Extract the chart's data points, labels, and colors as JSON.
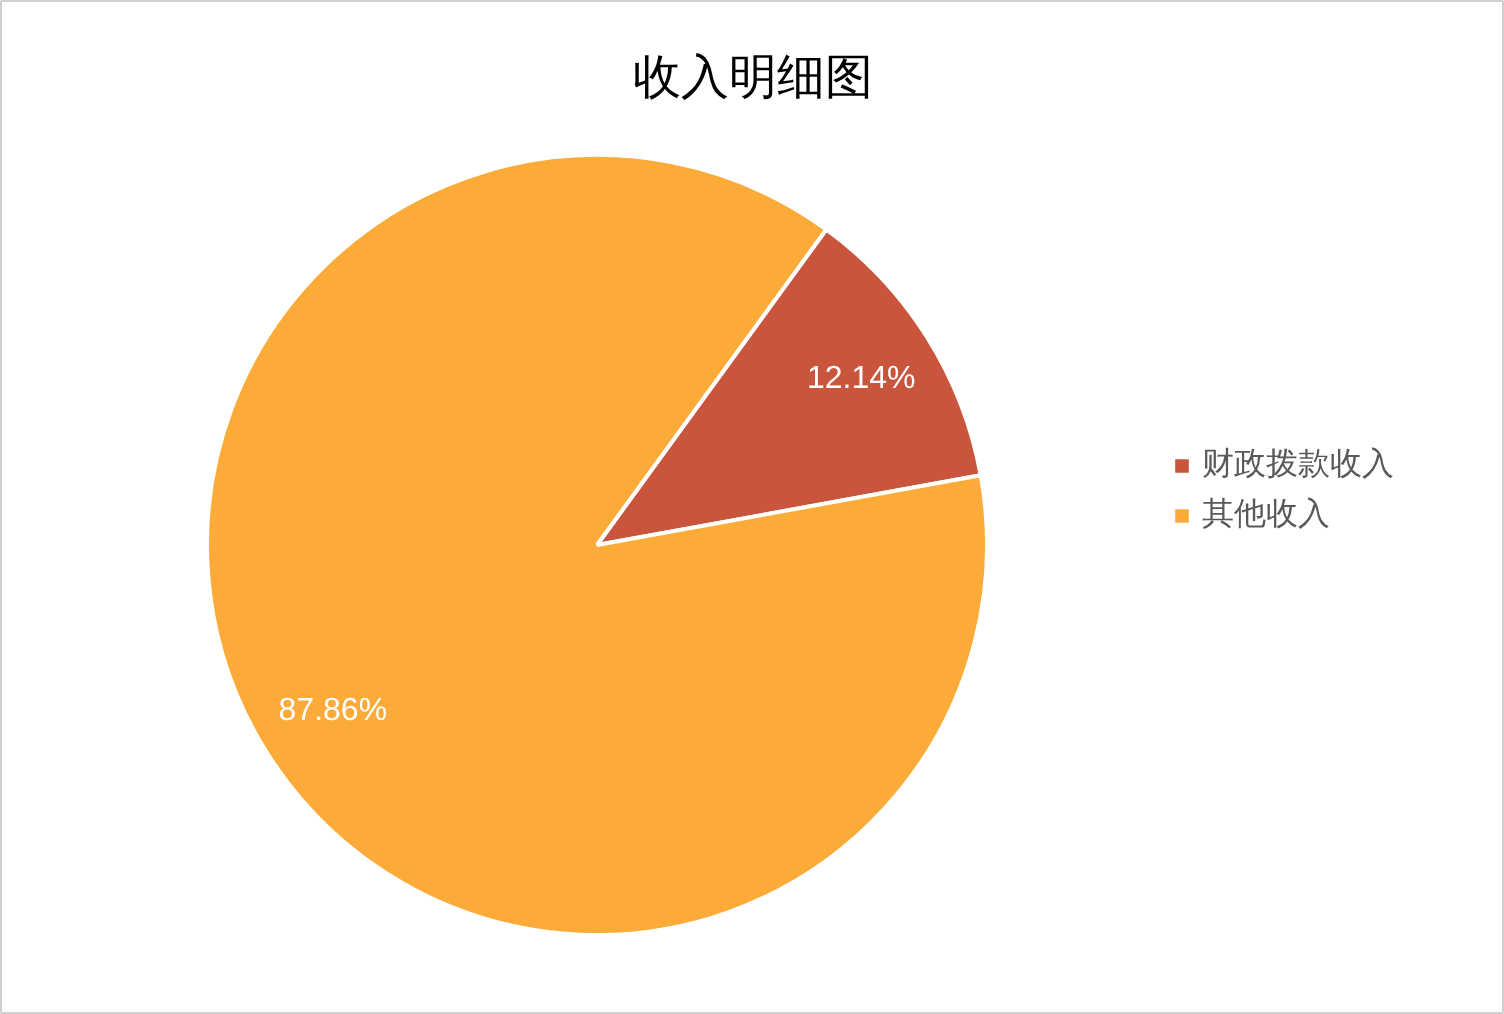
{
  "chart_data": {
    "type": "pie",
    "title": "收入明细图",
    "categories": [
      "财政拨款收入",
      "其他收入"
    ],
    "values": [
      12.14,
      87.86
    ],
    "colors": [
      "#c9553c",
      "#fcab38"
    ],
    "value_labels": [
      "12.14%",
      "87.86%"
    ],
    "legend": "right"
  }
}
